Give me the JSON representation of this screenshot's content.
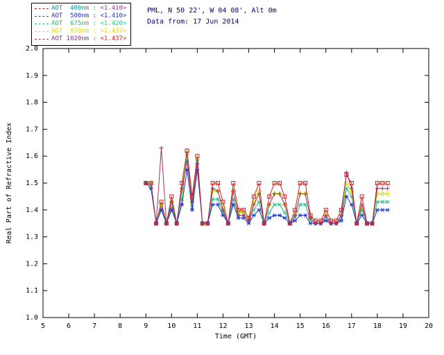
{
  "header": {
    "line1": "PML, N 50 22', W 04 08', Alt 0m",
    "line2": "Data from: 17 Jun 2014"
  },
  "legend": {
    "separator": " : ",
    "items": [
      {
        "label": "AOT  400nm",
        "value": "<1.410>",
        "label_color": "#009999",
        "value_color": "#993399",
        "line_color": "#cc2222"
      },
      {
        "label": "AOT  500nm",
        "value": "<1.410>",
        "label_color": "#2233cc",
        "value_color": "#2233cc",
        "line_color": "#2233cc"
      },
      {
        "label": "AOT  675nm",
        "value": "<1.420>",
        "label_color": "#22bb66",
        "value_color": "#22cc99",
        "line_color": "#22bb88"
      },
      {
        "label": "AOT  870nm",
        "value": "<1.437>",
        "label_color": "#dddd00",
        "value_color": "#dddd00",
        "line_color": "#dddd00"
      },
      {
        "label": "AOT 1020nm",
        "value": "<1.437>",
        "label_color": "#883388",
        "value_color": "#cc2222",
        "line_color": "#993366"
      }
    ]
  },
  "chart_data": {
    "type": "line",
    "title": "",
    "xlabel": "Time (GMT)",
    "ylabel": "Real Part of Refractive Index",
    "xlim": [
      5,
      20
    ],
    "ylim": [
      1.0,
      2.0
    ],
    "xticks": [
      5,
      6,
      7,
      8,
      9,
      10,
      11,
      12,
      13,
      14,
      15,
      16,
      17,
      18,
      19,
      20
    ],
    "yticks": [
      1.0,
      1.1,
      1.2,
      1.3,
      1.4,
      1.5,
      1.6,
      1.7,
      1.8,
      1.9,
      2.0
    ],
    "grid": false,
    "legend_position": "top-left",
    "x": [
      9.0,
      9.2,
      9.4,
      9.6,
      9.8,
      10.0,
      10.2,
      10.4,
      10.6,
      10.8,
      11.0,
      11.2,
      11.4,
      11.6,
      11.8,
      12.0,
      12.2,
      12.4,
      12.6,
      12.8,
      13.0,
      13.2,
      13.4,
      13.6,
      13.8,
      14.0,
      14.2,
      14.4,
      14.6,
      14.8,
      15.0,
      15.2,
      15.4,
      15.6,
      15.8,
      16.0,
      16.2,
      16.4,
      16.6,
      16.8,
      17.0,
      17.2,
      17.4,
      17.6,
      17.8,
      18.0,
      18.2,
      18.4
    ],
    "series": [
      {
        "name": "AOT 400nm",
        "mean": 1.41,
        "color": "#cc2222",
        "marker": "square",
        "values": [
          1.5,
          1.5,
          1.35,
          1.43,
          1.35,
          1.45,
          1.35,
          1.5,
          1.62,
          1.45,
          1.6,
          1.35,
          1.35,
          1.5,
          1.5,
          1.43,
          1.35,
          1.5,
          1.4,
          1.4,
          1.37,
          1.45,
          1.5,
          1.35,
          1.45,
          1.5,
          1.5,
          1.45,
          1.35,
          1.4,
          1.5,
          1.5,
          1.38,
          1.36,
          1.36,
          1.4,
          1.36,
          1.36,
          1.4,
          1.53,
          1.5,
          1.35,
          1.45,
          1.35,
          1.35,
          1.5,
          1.5,
          1.5
        ]
      },
      {
        "name": "AOT 500nm",
        "mean": 1.41,
        "color": "#2233cc",
        "marker": "asterisk",
        "values": [
          1.5,
          1.48,
          1.35,
          1.4,
          1.35,
          1.4,
          1.35,
          1.42,
          1.55,
          1.4,
          1.55,
          1.35,
          1.35,
          1.42,
          1.42,
          1.38,
          1.35,
          1.42,
          1.37,
          1.37,
          1.35,
          1.38,
          1.4,
          1.35,
          1.37,
          1.38,
          1.38,
          1.37,
          1.35,
          1.36,
          1.38,
          1.38,
          1.35,
          1.35,
          1.35,
          1.36,
          1.35,
          1.35,
          1.36,
          1.45,
          1.42,
          1.35,
          1.38,
          1.35,
          1.35,
          1.4,
          1.4,
          1.4
        ]
      },
      {
        "name": "AOT 675nm",
        "mean": 1.42,
        "color": "#22bb88",
        "marker": "x",
        "values": [
          1.5,
          1.49,
          1.35,
          1.41,
          1.35,
          1.41,
          1.35,
          1.44,
          1.61,
          1.41,
          1.58,
          1.35,
          1.35,
          1.44,
          1.44,
          1.39,
          1.35,
          1.44,
          1.38,
          1.38,
          1.36,
          1.4,
          1.43,
          1.35,
          1.39,
          1.42,
          1.42,
          1.39,
          1.35,
          1.37,
          1.42,
          1.42,
          1.36,
          1.35,
          1.35,
          1.37,
          1.35,
          1.35,
          1.37,
          1.48,
          1.45,
          1.35,
          1.4,
          1.35,
          1.35,
          1.43,
          1.43,
          1.43
        ]
      },
      {
        "name": "AOT 870nm",
        "mean": 1.437,
        "color": "#dddd00",
        "marker": "diamond",
        "values": [
          1.5,
          1.5,
          1.35,
          1.42,
          1.35,
          1.43,
          1.35,
          1.47,
          1.62,
          1.43,
          1.59,
          1.35,
          1.35,
          1.47,
          1.47,
          1.41,
          1.35,
          1.47,
          1.39,
          1.39,
          1.36,
          1.43,
          1.47,
          1.35,
          1.42,
          1.46,
          1.46,
          1.42,
          1.35,
          1.38,
          1.46,
          1.46,
          1.37,
          1.35,
          1.35,
          1.38,
          1.35,
          1.35,
          1.38,
          1.5,
          1.47,
          1.35,
          1.41,
          1.35,
          1.35,
          1.46,
          1.46,
          1.46
        ]
      },
      {
        "name": "AOT 1020nm",
        "mean": 1.437,
        "color": "#993366",
        "marker": "plus",
        "values": [
          1.5,
          1.5,
          1.35,
          1.63,
          1.35,
          1.43,
          1.35,
          1.48,
          1.58,
          1.43,
          1.57,
          1.35,
          1.35,
          1.48,
          1.47,
          1.4,
          1.35,
          1.47,
          1.38,
          1.38,
          1.36,
          1.42,
          1.46,
          1.35,
          1.42,
          1.46,
          1.46,
          1.42,
          1.35,
          1.38,
          1.46,
          1.46,
          1.37,
          1.35,
          1.35,
          1.38,
          1.35,
          1.35,
          1.38,
          1.54,
          1.48,
          1.35,
          1.42,
          1.35,
          1.35,
          1.48,
          1.48,
          1.48
        ]
      }
    ]
  }
}
